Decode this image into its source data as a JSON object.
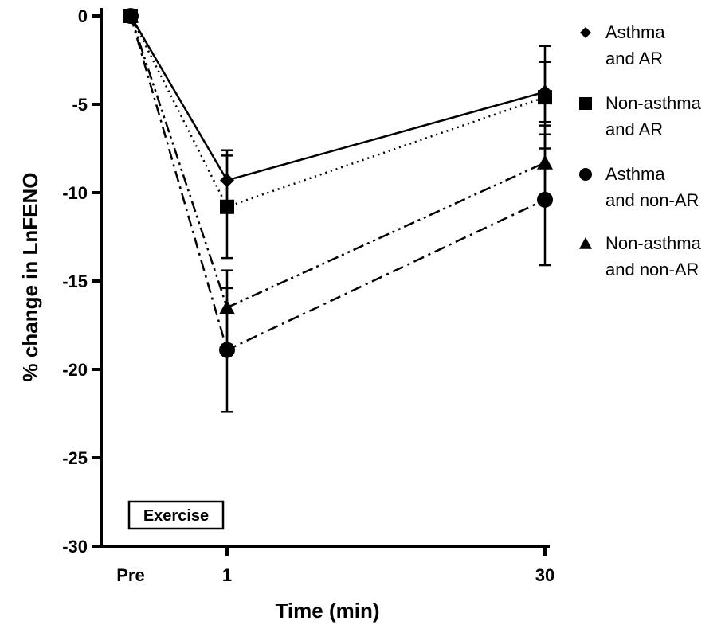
{
  "chart_data": {
    "type": "line",
    "xlabel": "Time (min)",
    "ylabel": "% change in LnFENO",
    "categories": [
      "Pre",
      "1",
      "30"
    ],
    "ylim": [
      -30,
      0
    ],
    "yticks": [
      0,
      -5,
      -10,
      -15,
      -20,
      -25,
      -30
    ],
    "grid": false,
    "legend_position": "right",
    "annotation": "Exercise",
    "series": [
      {
        "name": "Asthma and AR",
        "name_lines": [
          "Asthma",
          "and AR"
        ],
        "marker": "diamond",
        "line_style": "solid",
        "values": [
          0,
          -9.3,
          -4.3
        ],
        "errors": [
          0,
          1.7,
          1.7
        ]
      },
      {
        "name": "Non-asthma and AR",
        "name_lines": [
          "Non-asthma",
          "and AR"
        ],
        "marker": "square",
        "line_style": "dotted",
        "values": [
          0,
          -10.8,
          -4.6
        ],
        "errors": [
          0,
          2.9,
          2.9
        ]
      },
      {
        "name": "Asthma and non-AR",
        "name_lines": [
          "Asthma",
          "and non-AR"
        ],
        "marker": "circle",
        "line_style": "dash-dot",
        "values": [
          0,
          -18.9,
          -10.4
        ],
        "errors": [
          0,
          3.5,
          3.7
        ]
      },
      {
        "name": "Non-asthma and non-AR",
        "name_lines": [
          "Non-asthma",
          "and non-AR"
        ],
        "marker": "triangle",
        "line_style": "dash-dot-dot",
        "values": [
          0,
          -16.5,
          -8.3
        ],
        "errors": [
          0,
          2.1,
          2.1
        ]
      }
    ]
  }
}
